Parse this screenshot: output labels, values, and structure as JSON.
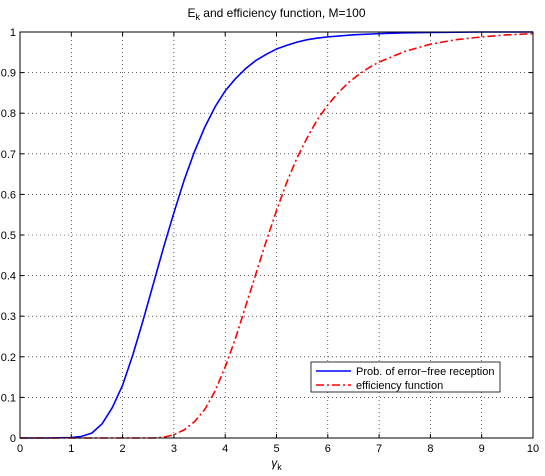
{
  "chart_data": {
    "type": "line",
    "title": {
      "main": "E",
      "sub": "k",
      "rest": " and efficiency function, M=100"
    },
    "xlabel": {
      "main": "γ",
      "sub": "k"
    },
    "ylabel": "",
    "xlim": [
      0,
      10
    ],
    "ylim": [
      0,
      1
    ],
    "xticks": [
      0,
      1,
      2,
      3,
      4,
      5,
      6,
      7,
      8,
      9,
      10
    ],
    "xtick_labels": [
      "0",
      "1",
      "2",
      "3",
      "4",
      "5",
      "6",
      "7",
      "8",
      "9",
      "10"
    ],
    "yticks": [
      0,
      0.1,
      0.2,
      0.3,
      0.4,
      0.5,
      0.6,
      0.7,
      0.8,
      0.9,
      1
    ],
    "ytick_labels": [
      "0",
      "0.1",
      "0.2",
      "0.3",
      "0.4",
      "0.5",
      "0.6",
      "0.7",
      "0.8",
      "0.9",
      "1"
    ],
    "grid": true,
    "legend_position": "bottom-right",
    "series": [
      {
        "name": "Prob. of error−free reception",
        "color": "#0000ff",
        "style": "solid",
        "x": [
          0,
          0.5,
          1.0,
          1.2,
          1.4,
          1.6,
          1.8,
          2.0,
          2.2,
          2.4,
          2.6,
          2.8,
          3.0,
          3.2,
          3.4,
          3.6,
          3.8,
          4.0,
          4.2,
          4.4,
          4.6,
          4.8,
          5.0,
          5.2,
          5.4,
          5.6,
          5.8,
          6.0,
          6.5,
          7.0,
          7.5,
          8.0,
          9.0,
          10.0
        ],
        "y": [
          0,
          0,
          0.001,
          0.004,
          0.012,
          0.035,
          0.075,
          0.13,
          0.205,
          0.29,
          0.38,
          0.47,
          0.555,
          0.635,
          0.705,
          0.765,
          0.815,
          0.855,
          0.885,
          0.91,
          0.93,
          0.945,
          0.958,
          0.967,
          0.975,
          0.981,
          0.985,
          0.988,
          0.993,
          0.996,
          0.998,
          0.999,
          1.0,
          1.0
        ]
      },
      {
        "name": "efficiency function",
        "color": "#ff0000",
        "style": "dashdot",
        "x": [
          0,
          1,
          2,
          2.6,
          2.8,
          3.0,
          3.2,
          3.4,
          3.6,
          3.8,
          4.0,
          4.2,
          4.4,
          4.6,
          4.8,
          5.0,
          5.2,
          5.4,
          5.6,
          5.8,
          6.0,
          6.2,
          6.4,
          6.6,
          6.8,
          7.0,
          7.5,
          8.0,
          8.5,
          9.0,
          9.5,
          10.0
        ],
        "y": [
          0,
          0,
          0,
          0.0,
          0.002,
          0.008,
          0.02,
          0.04,
          0.07,
          0.115,
          0.175,
          0.245,
          0.325,
          0.405,
          0.485,
          0.56,
          0.63,
          0.69,
          0.74,
          0.785,
          0.82,
          0.85,
          0.875,
          0.895,
          0.912,
          0.926,
          0.952,
          0.97,
          0.981,
          0.988,
          0.993,
          0.996
        ]
      }
    ]
  }
}
